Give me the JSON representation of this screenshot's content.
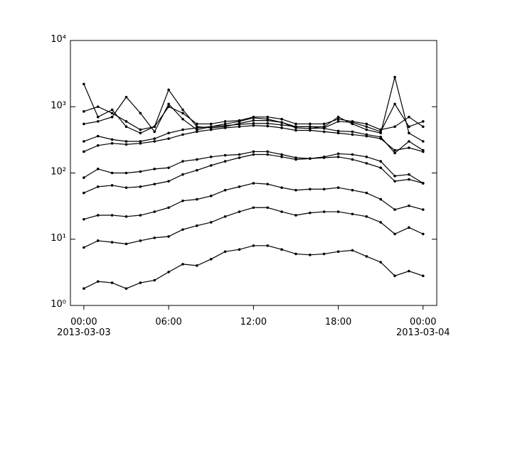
{
  "chart_data": {
    "type": "line",
    "log_scale_y": true,
    "color": "#000000",
    "x": [
      "2013-03-03T00:00",
      "2013-03-03T01:00",
      "2013-03-03T02:00",
      "2013-03-03T03:00",
      "2013-03-03T04:00",
      "2013-03-03T05:00",
      "2013-03-03T06:00",
      "2013-03-03T07:00",
      "2013-03-03T08:00",
      "2013-03-03T09:00",
      "2013-03-03T10:00",
      "2013-03-03T11:00",
      "2013-03-03T12:00",
      "2013-03-03T13:00",
      "2013-03-03T14:00",
      "2013-03-03T15:00",
      "2013-03-03T16:00",
      "2013-03-03T17:00",
      "2013-03-03T18:00",
      "2013-03-03T19:00",
      "2013-03-03T20:00",
      "2013-03-03T21:00",
      "2013-03-03T22:00",
      "2013-03-03T23:00",
      "2013-03-04T00:00"
    ],
    "xlim": [
      "2013-03-02T23:03",
      "2013-03-04T00:58"
    ],
    "xticks": [
      {
        "value": "2013-03-03T00:00",
        "label": "00:00",
        "sublabel": "2013-03-03"
      },
      {
        "value": "2013-03-03T06:00",
        "label": "06:00"
      },
      {
        "value": "2013-03-03T12:00",
        "label": "12:00"
      },
      {
        "value": "2013-03-03T18:00",
        "label": "18:00"
      },
      {
        "value": "2013-03-04T00:00",
        "label": "00:00",
        "sublabel": "2013-03-04"
      }
    ],
    "ylim": [
      1,
      10000
    ],
    "yticks": [
      {
        "value": 1,
        "label": "10⁰"
      },
      {
        "value": 10,
        "label": "10¹"
      },
      {
        "value": 100,
        "label": "10²"
      },
      {
        "value": 1000,
        "label": "10³"
      },
      {
        "value": 10000,
        "label": "10⁴"
      }
    ],
    "series": [
      {
        "values": [
          1.8,
          2.3,
          2.2,
          1.8,
          2.2,
          2.4,
          3.2,
          4.2,
          4.0,
          5,
          6.5,
          7,
          8,
          8,
          7,
          6,
          5.8,
          6,
          6.5,
          6.8,
          5.5,
          4.5,
          2.8,
          3.3,
          2.8
        ]
      },
      {
        "values": [
          7.5,
          9.5,
          9,
          8.5,
          9.5,
          10.5,
          11,
          14,
          16,
          18,
          22,
          26,
          30,
          30,
          26,
          23,
          25,
          26,
          26,
          24,
          22,
          18,
          12,
          15,
          12
        ]
      },
      {
        "values": [
          20,
          23,
          23,
          22,
          23,
          26,
          30,
          38,
          40,
          45,
          55,
          62,
          70,
          68,
          60,
          55,
          57,
          57,
          60,
          55,
          50,
          40,
          28,
          32,
          28
        ]
      },
      {
        "values": [
          50,
          62,
          65,
          60,
          62,
          68,
          75,
          95,
          110,
          130,
          150,
          170,
          190,
          190,
          175,
          160,
          165,
          170,
          175,
          160,
          140,
          120,
          75,
          80,
          70
        ]
      },
      {
        "values": [
          85,
          115,
          100,
          100,
          105,
          115,
          120,
          150,
          160,
          175,
          185,
          190,
          210,
          210,
          190,
          170,
          165,
          175,
          195,
          190,
          175,
          150,
          90,
          95,
          70
        ]
      },
      {
        "values": [
          210,
          260,
          280,
          270,
          280,
          300,
          330,
          380,
          420,
          450,
          480,
          500,
          520,
          510,
          480,
          440,
          440,
          420,
          400,
          380,
          360,
          330,
          220,
          240,
          210
        ]
      },
      {
        "values": [
          300,
          360,
          320,
          300,
          300,
          330,
          400,
          450,
          480,
          500,
          520,
          540,
          560,
          560,
          530,
          500,
          500,
          470,
          430,
          420,
          380,
          350,
          200,
          300,
          220
        ]
      },
      {
        "values": [
          2200,
          700,
          900,
          500,
          400,
          500,
          1800,
          900,
          500,
          480,
          500,
          560,
          620,
          620,
          580,
          500,
          500,
          500,
          700,
          550,
          450,
          400,
          2800,
          400,
          300
        ]
      },
      {
        "values": [
          550,
          600,
          700,
          1400,
          800,
          420,
          1100,
          650,
          450,
          500,
          550,
          600,
          680,
          650,
          580,
          480,
          470,
          480,
          600,
          580,
          500,
          420,
          1100,
          500,
          600
        ]
      },
      {
        "values": [
          850,
          1000,
          800,
          600,
          450,
          500,
          1000,
          800,
          550,
          550,
          600,
          620,
          700,
          700,
          650,
          550,
          550,
          550,
          650,
          600,
          550,
          450,
          500,
          700,
          500
        ]
      }
    ]
  }
}
